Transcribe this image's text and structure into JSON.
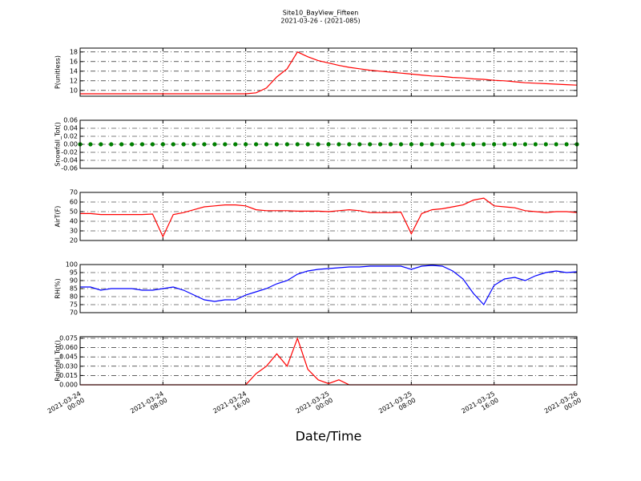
{
  "chart_data": [
    {
      "type": "line",
      "title": "Site10_BayView_Fifteen",
      "subtitle": "2021-03-26 - (2021-085)",
      "ylabel": "P(unitless)",
      "x": [
        "2021-03-24 00:00",
        "2021-03-24 01:00",
        "2021-03-24 02:00",
        "2021-03-24 03:00",
        "2021-03-24 04:00",
        "2021-03-24 05:00",
        "2021-03-24 06:00",
        "2021-03-24 07:00",
        "2021-03-24 08:00",
        "2021-03-24 09:00",
        "2021-03-24 10:00",
        "2021-03-24 11:00",
        "2021-03-24 12:00",
        "2021-03-24 13:00",
        "2021-03-24 14:00",
        "2021-03-24 15:00",
        "2021-03-24 16:00",
        "2021-03-24 17:00",
        "2021-03-24 18:00",
        "2021-03-24 19:00",
        "2021-03-24 20:00",
        "2021-03-24 21:00",
        "2021-03-24 22:00",
        "2021-03-24 23:00",
        "2021-03-25 00:00",
        "2021-03-25 01:00",
        "2021-03-25 02:00",
        "2021-03-25 03:00",
        "2021-03-25 04:00",
        "2021-03-25 05:00",
        "2021-03-25 06:00",
        "2021-03-25 07:00",
        "2021-03-25 08:00",
        "2021-03-25 09:00",
        "2021-03-25 10:00",
        "2021-03-25 11:00",
        "2021-03-25 12:00",
        "2021-03-25 13:00",
        "2021-03-25 14:00",
        "2021-03-25 15:00",
        "2021-03-25 16:00",
        "2021-03-25 17:00",
        "2021-03-25 18:00",
        "2021-03-25 19:00",
        "2021-03-25 20:00",
        "2021-03-25 21:00",
        "2021-03-25 22:00",
        "2021-03-25 23:00",
        "2021-03-26 00:00"
      ],
      "series": [
        {
          "color": "#ff0000",
          "values": [
            9.3,
            9.3,
            9.3,
            9.3,
            9.3,
            9.3,
            9.3,
            9.3,
            9.3,
            9.3,
            9.3,
            9.3,
            9.3,
            9.3,
            9.3,
            9.3,
            9.3,
            9.5,
            10.5,
            12.8,
            14.5,
            18,
            17,
            16.2,
            15.7,
            15.2,
            14.8,
            14.5,
            14.2,
            14,
            13.8,
            13.6,
            13.4,
            13.2,
            13,
            12.9,
            12.7,
            12.6,
            12.4,
            12.3,
            12.1,
            12,
            11.8,
            11.6,
            11.5,
            11.4,
            11.3,
            11.2,
            11.1
          ]
        }
      ],
      "ylim": [
        8.8,
        18.8
      ],
      "yticks": [
        10,
        12,
        14,
        16,
        18
      ],
      "grid": true
    },
    {
      "type": "line",
      "ylabel": "Snowfall_Tot()",
      "x": [
        "2021-03-24 00:00",
        "2021-03-24 01:00",
        "2021-03-24 02:00",
        "2021-03-24 03:00",
        "2021-03-24 04:00",
        "2021-03-24 05:00",
        "2021-03-24 06:00",
        "2021-03-24 07:00",
        "2021-03-24 08:00",
        "2021-03-24 09:00",
        "2021-03-24 10:00",
        "2021-03-24 11:00",
        "2021-03-24 12:00",
        "2021-03-24 13:00",
        "2021-03-24 14:00",
        "2021-03-24 15:00",
        "2021-03-24 16:00",
        "2021-03-24 17:00",
        "2021-03-24 18:00",
        "2021-03-24 19:00",
        "2021-03-24 20:00",
        "2021-03-24 21:00",
        "2021-03-24 22:00",
        "2021-03-24 23:00",
        "2021-03-25 00:00",
        "2021-03-25 01:00",
        "2021-03-25 02:00",
        "2021-03-25 03:00",
        "2021-03-25 04:00",
        "2021-03-25 05:00",
        "2021-03-25 06:00",
        "2021-03-25 07:00",
        "2021-03-25 08:00",
        "2021-03-25 09:00",
        "2021-03-25 10:00",
        "2021-03-25 11:00",
        "2021-03-25 12:00",
        "2021-03-25 13:00",
        "2021-03-25 14:00",
        "2021-03-25 15:00",
        "2021-03-25 16:00",
        "2021-03-25 17:00",
        "2021-03-25 18:00",
        "2021-03-25 19:00",
        "2021-03-25 20:00",
        "2021-03-25 21:00",
        "2021-03-25 22:00",
        "2021-03-25 23:00",
        "2021-03-26 00:00"
      ],
      "series": [
        {
          "color": "#008000",
          "marker": "o",
          "values": [
            0,
            0,
            0,
            0,
            0,
            0,
            0,
            0,
            0,
            0,
            0,
            0,
            0,
            0,
            0,
            0,
            0,
            0,
            0,
            0,
            0,
            0,
            0,
            0,
            0,
            0,
            0,
            0,
            0,
            0,
            0,
            0,
            0,
            0,
            0,
            0,
            0,
            0,
            0,
            0,
            0,
            0,
            0,
            0,
            0,
            0,
            0,
            0,
            0
          ]
        }
      ],
      "ylim": [
        -0.06,
        0.06
      ],
      "yticks": [
        -0.06,
        -0.04,
        -0.02,
        {
          "value": 0,
          "label": "0.00"
        },
        0.02,
        0.04,
        0.06
      ],
      "grid": true
    },
    {
      "type": "line",
      "ylabel": "AirT(F)",
      "x": [
        "2021-03-24 00:00",
        "2021-03-24 01:00",
        "2021-03-24 02:00",
        "2021-03-24 03:00",
        "2021-03-24 04:00",
        "2021-03-24 05:00",
        "2021-03-24 06:00",
        "2021-03-24 07:00",
        "2021-03-24 08:00",
        "2021-03-24 09:00",
        "2021-03-24 10:00",
        "2021-03-24 11:00",
        "2021-03-24 12:00",
        "2021-03-24 13:00",
        "2021-03-24 14:00",
        "2021-03-24 15:00",
        "2021-03-24 16:00",
        "2021-03-24 17:00",
        "2021-03-24 18:00",
        "2021-03-24 19:00",
        "2021-03-24 20:00",
        "2021-03-24 21:00",
        "2021-03-24 22:00",
        "2021-03-24 23:00",
        "2021-03-25 00:00",
        "2021-03-25 01:00",
        "2021-03-25 02:00",
        "2021-03-25 03:00",
        "2021-03-25 04:00",
        "2021-03-25 05:00",
        "2021-03-25 06:00",
        "2021-03-25 07:00",
        "2021-03-25 08:00",
        "2021-03-25 09:00",
        "2021-03-25 10:00",
        "2021-03-25 11:00",
        "2021-03-25 12:00",
        "2021-03-25 13:00",
        "2021-03-25 14:00",
        "2021-03-25 15:00",
        "2021-03-25 16:00",
        "2021-03-25 17:00",
        "2021-03-25 18:00",
        "2021-03-25 19:00",
        "2021-03-25 20:00",
        "2021-03-25 21:00",
        "2021-03-25 22:00",
        "2021-03-25 23:00",
        "2021-03-26 00:00"
      ],
      "series": [
        {
          "color": "#ff0000",
          "values": [
            48,
            48,
            47,
            47,
            47,
            47,
            47,
            47.5,
            24,
            47,
            49,
            52,
            55,
            56,
            57,
            57,
            56,
            52,
            51,
            51,
            51,
            50.5,
            50.5,
            50.5,
            50,
            51,
            52,
            51,
            49,
            49,
            49,
            49.5,
            27,
            48,
            52,
            53,
            55,
            57,
            62,
            64,
            56,
            55,
            54,
            51,
            50,
            49,
            50,
            50,
            49
          ]
        }
      ],
      "ylim": [
        20,
        70
      ],
      "yticks": [
        20,
        30,
        40,
        50,
        60,
        70
      ],
      "grid": true
    },
    {
      "type": "line",
      "ylabel": "RH(%)",
      "x": [
        "2021-03-24 00:00",
        "2021-03-24 01:00",
        "2021-03-24 02:00",
        "2021-03-24 03:00",
        "2021-03-24 04:00",
        "2021-03-24 05:00",
        "2021-03-24 06:00",
        "2021-03-24 07:00",
        "2021-03-24 08:00",
        "2021-03-24 09:00",
        "2021-03-24 10:00",
        "2021-03-24 11:00",
        "2021-03-24 12:00",
        "2021-03-24 13:00",
        "2021-03-24 14:00",
        "2021-03-24 15:00",
        "2021-03-24 16:00",
        "2021-03-24 17:00",
        "2021-03-24 18:00",
        "2021-03-24 19:00",
        "2021-03-24 20:00",
        "2021-03-24 21:00",
        "2021-03-24 22:00",
        "2021-03-24 23:00",
        "2021-03-25 00:00",
        "2021-03-25 01:00",
        "2021-03-25 02:00",
        "2021-03-25 03:00",
        "2021-03-25 04:00",
        "2021-03-25 05:00",
        "2021-03-25 06:00",
        "2021-03-25 07:00",
        "2021-03-25 08:00",
        "2021-03-25 09:00",
        "2021-03-25 10:00",
        "2021-03-25 11:00",
        "2021-03-25 12:00",
        "2021-03-25 13:00",
        "2021-03-25 14:00",
        "2021-03-25 15:00",
        "2021-03-25 16:00",
        "2021-03-25 17:00",
        "2021-03-25 18:00",
        "2021-03-25 19:00",
        "2021-03-25 20:00",
        "2021-03-25 21:00",
        "2021-03-25 22:00",
        "2021-03-25 23:00",
        "2021-03-26 00:00"
      ],
      "series": [
        {
          "color": "#0000ff",
          "values": [
            86,
            86,
            84,
            85,
            85,
            85,
            84,
            84,
            85,
            86,
            84,
            81,
            78,
            77,
            78,
            78,
            81,
            83,
            85,
            88,
            90,
            94,
            96,
            97,
            97.5,
            98,
            98.5,
            98.5,
            99,
            99,
            99,
            99,
            97,
            99,
            99.5,
            99,
            96,
            91,
            82,
            75,
            87,
            91,
            92,
            90,
            93,
            95,
            96,
            95,
            95.5
          ]
        }
      ],
      "ylim": [
        70,
        100
      ],
      "yticks": [
        70,
        75,
        80,
        85,
        90,
        95,
        100
      ],
      "grid": true
    },
    {
      "type": "line",
      "ylabel": "Rainfall_Tot()",
      "xlabel": "Date/Time",
      "x": [
        "2021-03-24 00:00",
        "2021-03-24 01:00",
        "2021-03-24 02:00",
        "2021-03-24 03:00",
        "2021-03-24 04:00",
        "2021-03-24 05:00",
        "2021-03-24 06:00",
        "2021-03-24 07:00",
        "2021-03-24 08:00",
        "2021-03-24 09:00",
        "2021-03-24 10:00",
        "2021-03-24 11:00",
        "2021-03-24 12:00",
        "2021-03-24 13:00",
        "2021-03-24 14:00",
        "2021-03-24 15:00",
        "2021-03-24 16:00",
        "2021-03-24 17:00",
        "2021-03-24 18:00",
        "2021-03-24 19:00",
        "2021-03-24 20:00",
        "2021-03-24 21:00",
        "2021-03-24 22:00",
        "2021-03-24 23:00",
        "2021-03-25 00:00",
        "2021-03-25 01:00",
        "2021-03-25 02:00",
        "2021-03-25 03:00",
        "2021-03-25 04:00",
        "2021-03-25 05:00",
        "2021-03-25 06:00",
        "2021-03-25 07:00",
        "2021-03-25 08:00",
        "2021-03-25 09:00",
        "2021-03-25 10:00",
        "2021-03-25 11:00",
        "2021-03-25 12:00",
        "2021-03-25 13:00",
        "2021-03-25 14:00",
        "2021-03-25 15:00",
        "2021-03-25 16:00",
        "2021-03-25 17:00",
        "2021-03-25 18:00",
        "2021-03-25 19:00",
        "2021-03-25 20:00",
        "2021-03-25 21:00",
        "2021-03-25 22:00",
        "2021-03-25 23:00",
        "2021-03-26 00:00"
      ],
      "series": [
        {
          "color": "#ff0000",
          "values": [
            0,
            0,
            0,
            0,
            0,
            0,
            0,
            0,
            0,
            0,
            0,
            0,
            0,
            0,
            0,
            0,
            0,
            0.018,
            0.03,
            0.05,
            0.03,
            0.075,
            0.025,
            0.008,
            0.002,
            0.008,
            0,
            0,
            0,
            0,
            0,
            0,
            0,
            0,
            0,
            0,
            0,
            0,
            0,
            0,
            0,
            0,
            0,
            0,
            0,
            0,
            0,
            0,
            0
          ]
        }
      ],
      "ylim": [
        0,
        0.0776
      ],
      "yticks": [
        {
          "value": 0,
          "label": "0.000"
        },
        0.015,
        {
          "value": 0.03,
          "label": "0.030"
        },
        0.045,
        {
          "value": 0.06,
          "label": "0.060"
        },
        0.075
      ],
      "grid": true,
      "xlim": [
        "2021-03-24 00:00",
        "2021-03-26 00:00"
      ],
      "xticks": [
        {
          "value": "2021-03-24 00:00",
          "label": "2021-03-24\n00:00"
        },
        {
          "value": "2021-03-24 08:00",
          "label": "2021-03-24\n08:00"
        },
        {
          "value": "2021-03-24 16:00",
          "label": "2021-03-24\n16:00"
        },
        {
          "value": "2021-03-25 00:00",
          "label": "2021-03-25\n00:00"
        },
        {
          "value": "2021-03-25 08:00",
          "label": "2021-03-25\n08:00"
        },
        {
          "value": "2021-03-25 16:00",
          "label": "2021-03-25\n16:00"
        },
        {
          "value": "2021-03-26 00:00",
          "label": "2021-03-26\n00:00"
        }
      ]
    }
  ]
}
